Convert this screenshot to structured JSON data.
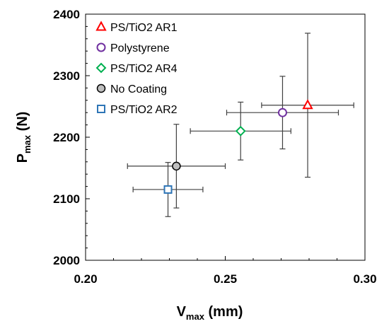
{
  "chart_data": {
    "type": "scatter",
    "xlabel": {
      "main": "V",
      "sub": "max",
      "unit": " (mm)"
    },
    "ylabel": {
      "main": "P",
      "sub": "max",
      "unit": " (N)"
    },
    "xlim": [
      0.2,
      0.3
    ],
    "ylim": [
      2000,
      2400
    ],
    "xticks": [
      0.2,
      0.25,
      0.3
    ],
    "xtick_labels": [
      "0.20",
      "0.25",
      "0.30"
    ],
    "yticks": [
      2000,
      2100,
      2200,
      2300,
      2400
    ],
    "ytick_labels": [
      "2000",
      "2100",
      "2200",
      "2300",
      "2400"
    ],
    "grid": false,
    "legend_position": "top-left",
    "series": [
      {
        "name": "PS/TiO2 AR1",
        "marker": "triangle",
        "color": "#FF0000",
        "x": 0.2795,
        "y": 2252,
        "x_err": 0.0165,
        "y_err": 117
      },
      {
        "name": "Polystyrene",
        "marker": "circle",
        "color": "#7030A0",
        "x": 0.2705,
        "y": 2240,
        "x_err": 0.02,
        "y_err": 59
      },
      {
        "name": "PS/TiO2 AR4",
        "marker": "diamond",
        "color": "#00B050",
        "x": 0.2555,
        "y": 2210,
        "x_err": 0.018,
        "y_err": 47
      },
      {
        "name": "No Coating",
        "marker": "circle-filled",
        "color": "#404040",
        "x": 0.2325,
        "y": 2153,
        "x_err": 0.0175,
        "y_err": 68
      },
      {
        "name": "PS/TiO2 AR2",
        "marker": "square",
        "color": "#2E75B6",
        "x": 0.2295,
        "y": 2115,
        "x_err": 0.0125,
        "y_err": 44
      }
    ]
  }
}
